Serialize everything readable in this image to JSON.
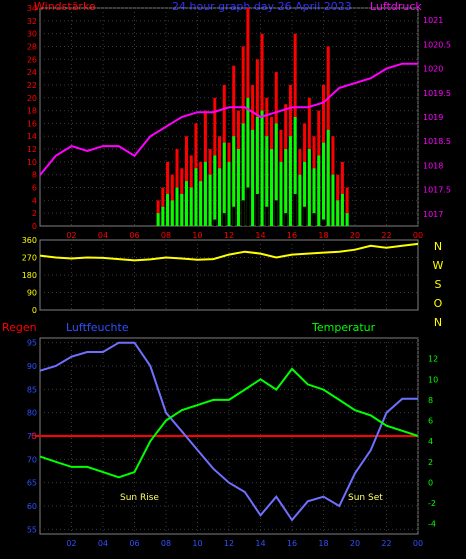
{
  "colors": {
    "background": "#000000",
    "wind_axis": "#ff0000",
    "pressure_axis": "#ff00ff",
    "title": "#3030ff",
    "gust": "#ff0000",
    "wind_avg": "#00ff00",
    "wind_min": "#000000",
    "pressure_line": "#ff00ff",
    "direction_line": "#ffff00",
    "direction_axis": "#ffff00",
    "humidity_line": "#7070ff",
    "humidity_axis": "#3050ff",
    "temp_line": "#00ff00",
    "temp_axis": "#00ff00",
    "rain_axis": "#ff0000",
    "sun_label": "#ffff60",
    "grid": "#808080"
  },
  "labels": {
    "wind_title": "Windstärke",
    "top_title": "24 hour graph day  26 April 2023",
    "pressure_title": "Luftdruck",
    "rain_title": "Regen",
    "humidity_title": "Luftfeuchte",
    "temp_title": "Temperatur",
    "sunrise": "Sun Rise",
    "sunset": "Sun Set",
    "compass": [
      "N",
      "W",
      "S",
      "O",
      "N"
    ]
  },
  "chart_data": [
    {
      "type": "bar",
      "id": "wind",
      "x_ticks": [
        "02",
        "04",
        "06",
        "08",
        "10",
        "12",
        "14",
        "16",
        "18",
        "20",
        "22",
        "00"
      ],
      "xlim": [
        0,
        24
      ],
      "ylim": [
        0,
        34
      ],
      "ylabel": "Windstärke",
      "y_ticks": [
        0,
        2,
        4,
        6,
        8,
        10,
        12,
        14,
        16,
        18,
        20,
        22,
        24,
        26,
        28,
        30,
        32,
        34
      ],
      "y2_ticks": [
        "1017",
        "1017.5",
        "1018",
        "1018.5",
        "1019",
        "1019.5",
        "1020",
        "1020.5",
        "1021"
      ],
      "y2lim": [
        1016.75,
        1021.25
      ],
      "y2label": "Luftdruck",
      "pressure": {
        "x": [
          0,
          1,
          2,
          3,
          4,
          5,
          6,
          7,
          8,
          9,
          10,
          11,
          12,
          13,
          14,
          15,
          16,
          17,
          18,
          19,
          20,
          21,
          22,
          23,
          24
        ],
        "y": [
          1017.8,
          1018.2,
          1018.4,
          1018.3,
          1018.4,
          1018.4,
          1018.2,
          1018.6,
          1018.8,
          1019.0,
          1019.1,
          1019.1,
          1019.2,
          1019.2,
          1019.0,
          1019.1,
          1019.2,
          1019.2,
          1019.3,
          1019.6,
          1019.7,
          1019.8,
          1020.0,
          1020.1,
          1020.1
        ]
      },
      "gust": {
        "x": [
          7.5,
          7.8,
          8.1,
          8.4,
          8.7,
          9.0,
          9.3,
          9.6,
          9.9,
          10.2,
          10.5,
          10.8,
          11.1,
          11.4,
          11.7,
          12.0,
          12.3,
          12.6,
          12.9,
          13.2,
          13.5,
          13.8,
          14.1,
          14.4,
          14.7,
          15.0,
          15.3,
          15.6,
          15.9,
          16.2,
          16.5,
          16.8,
          17.1,
          17.4,
          17.7,
          18.0,
          18.3,
          18.6,
          18.9,
          19.2,
          19.5
        ],
        "y": [
          4,
          6,
          10,
          8,
          12,
          9,
          14,
          11,
          16,
          10,
          18,
          12,
          20,
          14,
          22,
          13,
          25,
          18,
          28,
          34,
          22,
          26,
          30,
          20,
          17,
          24,
          15,
          19,
          22,
          30,
          12,
          16,
          20,
          14,
          18,
          22,
          28,
          14,
          8,
          10,
          6
        ]
      },
      "average": {
        "x": [
          7.5,
          7.8,
          8.1,
          8.4,
          8.7,
          9.0,
          9.3,
          9.6,
          9.9,
          10.2,
          10.5,
          10.8,
          11.1,
          11.4,
          11.7,
          12.0,
          12.3,
          12.6,
          12.9,
          13.2,
          13.5,
          13.8,
          14.1,
          14.4,
          14.7,
          15.0,
          15.3,
          15.6,
          15.9,
          16.2,
          16.5,
          16.8,
          17.1,
          17.4,
          17.7,
          18.0,
          18.3,
          18.6,
          18.9,
          19.2,
          19.5
        ],
        "y": [
          2,
          3,
          5,
          4,
          6,
          5,
          7,
          6,
          9,
          7,
          10,
          8,
          11,
          9,
          13,
          10,
          14,
          12,
          16,
          20,
          15,
          17,
          18,
          14,
          12,
          16,
          10,
          12,
          14,
          17,
          8,
          10,
          12,
          9,
          11,
          13,
          15,
          8,
          4,
          5,
          2
        ]
      },
      "minimum": {
        "x": [
          11.1,
          11.7,
          12.3,
          12.9,
          13.2,
          13.8,
          14.4,
          15.0,
          15.6,
          16.2,
          16.8,
          17.4,
          18.0
        ],
        "y": [
          1,
          2,
          3,
          4,
          6,
          5,
          3,
          4,
          2,
          5,
          3,
          2,
          1
        ]
      }
    },
    {
      "type": "line",
      "id": "direction",
      "xlim": [
        0,
        24
      ],
      "ylim": [
        0,
        360
      ],
      "y_ticks": [
        0,
        90,
        180,
        270,
        360
      ],
      "x": [
        0,
        1,
        2,
        3,
        4,
        5,
        6,
        7,
        8,
        9,
        10,
        11,
        12,
        13,
        14,
        15,
        16,
        17,
        18,
        19,
        20,
        21,
        22,
        23,
        24
      ],
      "y": [
        280,
        270,
        265,
        270,
        268,
        262,
        255,
        260,
        270,
        265,
        258,
        262,
        285,
        300,
        290,
        270,
        285,
        290,
        295,
        300,
        310,
        330,
        320,
        330,
        340
      ]
    },
    {
      "type": "line",
      "id": "humidity_temperature",
      "x_ticks": [
        "02",
        "04",
        "06",
        "08",
        "10",
        "12",
        "14",
        "16",
        "18",
        "20",
        "22",
        "00"
      ],
      "xlim": [
        0,
        24
      ],
      "humidity": {
        "ylim": [
          54,
          96
        ],
        "y_ticks": [
          55,
          60,
          65,
          70,
          75,
          80,
          85,
          90,
          95
        ],
        "x": [
          0,
          1,
          2,
          3,
          4,
          5,
          6,
          7,
          8,
          9,
          10,
          11,
          12,
          13,
          14,
          15,
          16,
          17,
          18,
          19,
          20,
          21,
          22,
          23,
          24
        ],
        "y": [
          89,
          90,
          92,
          93,
          93,
          95,
          95,
          90,
          80,
          76,
          72,
          68,
          65,
          63,
          58,
          62,
          57,
          61,
          62,
          60,
          67,
          72,
          80,
          83,
          83
        ]
      },
      "temperature": {
        "ylim": [
          -5,
          14
        ],
        "y_ticks": [
          -4,
          -2,
          0,
          2,
          4,
          6,
          8,
          10,
          12
        ],
        "x": [
          0,
          1,
          2,
          3,
          4,
          5,
          6,
          7,
          8,
          9,
          10,
          11,
          12,
          13,
          14,
          15,
          16,
          17,
          18,
          19,
          20,
          21,
          22,
          23,
          24
        ],
        "y": [
          2.5,
          2,
          1.5,
          1.5,
          1,
          0.5,
          1,
          4,
          6,
          7,
          7.5,
          8,
          8,
          9,
          10,
          9,
          11,
          9.5,
          9,
          8,
          7,
          6.5,
          5.5,
          5,
          4.5
        ]
      },
      "rain_marker": "0"
    }
  ]
}
